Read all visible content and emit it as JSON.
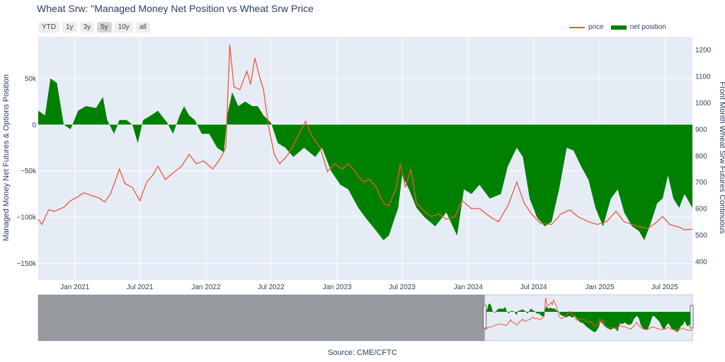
{
  "title": "Wheat Srw: \"Managed Money Net Position vs Wheat Srw Price",
  "range_buttons": [
    "YTD",
    "1y",
    "3y",
    "5y",
    "10y",
    "all"
  ],
  "active_range": "5y",
  "legend": {
    "price": "price",
    "net_position": "net position"
  },
  "source": "Source: CME/CFTC",
  "colors": {
    "price": "#ef553b",
    "net_position": "#008000",
    "plot_bg": "#e5ecf6",
    "axis_text": "#2a3f5f"
  },
  "chart_data": {
    "type": "line",
    "x_range": [
      "2020-09-21",
      "2025-09-16"
    ],
    "x_ticks": [
      "Jan 2021",
      "Jul 2021",
      "Jan 2022",
      "Jul 2022",
      "Jan 2023",
      "Jul 2023",
      "Jan 2024",
      "Jul 2024",
      "Jan 2025",
      "Jul 2025"
    ],
    "y_left": {
      "label": "Managed Money Net Futures & Options Position",
      "range": [
        -168000,
        95000
      ],
      "ticks": [
        "50k",
        "0",
        "−50k",
        "−100k",
        "−150k"
      ],
      "tick_values": [
        50000,
        0,
        -50000,
        -100000,
        -150000
      ]
    },
    "y_right": {
      "label": "Front Month Wheat Srw Futures Continuous",
      "range": [
        330,
        1250
      ],
      "ticks": [
        "1200",
        "1100",
        "1000",
        "900",
        "800",
        "700",
        "600",
        "500",
        "400"
      ],
      "tick_values": [
        1200,
        1100,
        1000,
        900,
        800,
        700,
        600,
        500,
        400
      ]
    },
    "series": [
      {
        "name": "net position",
        "type": "area",
        "axis": "left",
        "points": [
          [
            "2020-09-21",
            15000
          ],
          [
            "2020-10-10",
            10000
          ],
          [
            "2020-10-25",
            50000
          ],
          [
            "2020-11-12",
            45000
          ],
          [
            "2020-12-01",
            0
          ],
          [
            "2020-12-20",
            -5000
          ],
          [
            "2021-01-10",
            15000
          ],
          [
            "2021-02-01",
            20000
          ],
          [
            "2021-03-01",
            18000
          ],
          [
            "2021-03-20",
            30000
          ],
          [
            "2021-04-01",
            5000
          ],
          [
            "2021-04-20",
            -10000
          ],
          [
            "2021-05-05",
            5000
          ],
          [
            "2021-05-25",
            5000
          ],
          [
            "2021-06-10",
            0
          ],
          [
            "2021-06-25",
            -20000
          ],
          [
            "2021-07-10",
            5000
          ],
          [
            "2021-08-01",
            10000
          ],
          [
            "2021-08-20",
            15000
          ],
          [
            "2021-09-15",
            2000
          ],
          [
            "2021-10-01",
            -10000
          ],
          [
            "2021-10-20",
            10000
          ],
          [
            "2021-11-01",
            20000
          ],
          [
            "2021-11-15",
            10000
          ],
          [
            "2021-12-01",
            5000
          ],
          [
            "2021-12-20",
            -10000
          ],
          [
            "2022-01-10",
            -10000
          ],
          [
            "2022-02-01",
            -25000
          ],
          [
            "2022-02-20",
            -30000
          ],
          [
            "2022-03-01",
            10000
          ],
          [
            "2022-03-15",
            35000
          ],
          [
            "2022-04-01",
            20000
          ],
          [
            "2022-04-20",
            25000
          ],
          [
            "2022-05-10",
            20000
          ],
          [
            "2022-05-25",
            20000
          ],
          [
            "2022-06-10",
            10000
          ],
          [
            "2022-07-01",
            2000
          ],
          [
            "2022-07-20",
            -20000
          ],
          [
            "2022-08-10",
            -25000
          ],
          [
            "2022-09-01",
            -35000
          ],
          [
            "2022-10-01",
            -25000
          ],
          [
            "2022-11-01",
            -35000
          ],
          [
            "2022-11-20",
            -25000
          ],
          [
            "2022-12-15",
            -50000
          ],
          [
            "2023-01-10",
            -65000
          ],
          [
            "2023-02-01",
            -70000
          ],
          [
            "2023-03-01",
            -90000
          ],
          [
            "2023-03-20",
            -100000
          ],
          [
            "2023-04-20",
            -115000
          ],
          [
            "2023-05-10",
            -125000
          ],
          [
            "2023-05-25",
            -120000
          ],
          [
            "2023-06-20",
            -90000
          ],
          [
            "2023-07-01",
            -55000
          ],
          [
            "2023-07-20",
            -70000
          ],
          [
            "2023-08-10",
            -90000
          ],
          [
            "2023-09-01",
            -100000
          ],
          [
            "2023-10-01",
            -110000
          ],
          [
            "2023-11-01",
            -95000
          ],
          [
            "2023-12-01",
            -120000
          ],
          [
            "2023-12-20",
            -70000
          ],
          [
            "2024-01-10",
            -75000
          ],
          [
            "2024-02-01",
            -65000
          ],
          [
            "2024-03-01",
            -80000
          ],
          [
            "2024-04-01",
            -75000
          ],
          [
            "2024-04-20",
            -45000
          ],
          [
            "2024-05-15",
            -25000
          ],
          [
            "2024-06-01",
            -35000
          ],
          [
            "2024-06-20",
            -80000
          ],
          [
            "2024-07-10",
            -100000
          ],
          [
            "2024-08-01",
            -110000
          ],
          [
            "2024-08-20",
            -105000
          ],
          [
            "2024-09-10",
            -70000
          ],
          [
            "2024-10-01",
            -25000
          ],
          [
            "2024-10-20",
            -28000
          ],
          [
            "2024-11-10",
            -45000
          ],
          [
            "2024-12-01",
            -60000
          ],
          [
            "2024-12-20",
            -90000
          ],
          [
            "2025-01-10",
            -110000
          ],
          [
            "2025-02-01",
            -80000
          ],
          [
            "2025-02-20",
            -70000
          ],
          [
            "2025-03-10",
            -95000
          ],
          [
            "2025-04-01",
            -110000
          ],
          [
            "2025-04-20",
            -115000
          ],
          [
            "2025-05-05",
            -125000
          ],
          [
            "2025-05-20",
            -110000
          ],
          [
            "2025-06-10",
            -85000
          ],
          [
            "2025-06-25",
            -80000
          ],
          [
            "2025-07-10",
            -55000
          ],
          [
            "2025-07-25",
            -80000
          ],
          [
            "2025-08-10",
            -90000
          ],
          [
            "2025-08-25",
            -75000
          ],
          [
            "2025-09-16",
            -90000
          ]
        ]
      },
      {
        "name": "price",
        "type": "line",
        "axis": "right",
        "points": [
          [
            "2020-09-21",
            560
          ],
          [
            "2020-10-01",
            540
          ],
          [
            "2020-10-20",
            595
          ],
          [
            "2020-11-05",
            590
          ],
          [
            "2020-12-01",
            605
          ],
          [
            "2020-12-20",
            630
          ],
          [
            "2021-01-10",
            645
          ],
          [
            "2021-01-25",
            660
          ],
          [
            "2021-02-15",
            650
          ],
          [
            "2021-03-10",
            640
          ],
          [
            "2021-03-25",
            625
          ],
          [
            "2021-04-10",
            655
          ],
          [
            "2021-04-25",
            710
          ],
          [
            "2021-05-05",
            750
          ],
          [
            "2021-05-20",
            695
          ],
          [
            "2021-06-10",
            680
          ],
          [
            "2021-07-01",
            630
          ],
          [
            "2021-07-20",
            700
          ],
          [
            "2021-08-05",
            725
          ],
          [
            "2021-08-20",
            760
          ],
          [
            "2021-09-10",
            710
          ],
          [
            "2021-10-01",
            735
          ],
          [
            "2021-10-25",
            760
          ],
          [
            "2021-11-15",
            805
          ],
          [
            "2021-12-05",
            770
          ],
          [
            "2021-12-25",
            780
          ],
          [
            "2022-01-20",
            750
          ],
          [
            "2022-02-10",
            790
          ],
          [
            "2022-02-25",
            830
          ],
          [
            "2022-03-08",
            1220
          ],
          [
            "2022-03-20",
            1060
          ],
          [
            "2022-04-05",
            1050
          ],
          [
            "2022-04-25",
            1120
          ],
          [
            "2022-05-05",
            1070
          ],
          [
            "2022-05-17",
            1170
          ],
          [
            "2022-05-30",
            1100
          ],
          [
            "2022-06-10",
            1050
          ],
          [
            "2022-06-25",
            905
          ],
          [
            "2022-07-10",
            805
          ],
          [
            "2022-07-25",
            770
          ],
          [
            "2022-08-15",
            800
          ],
          [
            "2022-09-01",
            840
          ],
          [
            "2022-09-20",
            890
          ],
          [
            "2022-10-05",
            930
          ],
          [
            "2022-10-25",
            870
          ],
          [
            "2022-11-15",
            830
          ],
          [
            "2022-12-05",
            740
          ],
          [
            "2022-12-25",
            770
          ],
          [
            "2023-01-15",
            750
          ],
          [
            "2023-02-01",
            770
          ],
          [
            "2023-02-20",
            740
          ],
          [
            "2023-03-15",
            700
          ],
          [
            "2023-04-01",
            710
          ],
          [
            "2023-04-20",
            680
          ],
          [
            "2023-05-10",
            620
          ],
          [
            "2023-05-25",
            610
          ],
          [
            "2023-06-15",
            680
          ],
          [
            "2023-06-26",
            770
          ],
          [
            "2023-07-10",
            680
          ],
          [
            "2023-07-25",
            750
          ],
          [
            "2023-08-10",
            620
          ],
          [
            "2023-09-01",
            590
          ],
          [
            "2023-09-20",
            570
          ],
          [
            "2023-10-10",
            580
          ],
          [
            "2023-11-01",
            560
          ],
          [
            "2023-11-25",
            570
          ],
          [
            "2023-12-15",
            630
          ],
          [
            "2024-01-10",
            600
          ],
          [
            "2024-02-01",
            600
          ],
          [
            "2024-03-01",
            570
          ],
          [
            "2024-03-25",
            550
          ],
          [
            "2024-04-20",
            610
          ],
          [
            "2024-05-15",
            700
          ],
          [
            "2024-06-05",
            620
          ],
          [
            "2024-06-25",
            580
          ],
          [
            "2024-07-20",
            545
          ],
          [
            "2024-08-20",
            540
          ],
          [
            "2024-09-15",
            580
          ],
          [
            "2024-10-10",
            595
          ],
          [
            "2024-11-01",
            570
          ],
          [
            "2024-12-01",
            550
          ],
          [
            "2024-12-25",
            540
          ],
          [
            "2025-01-20",
            550
          ],
          [
            "2025-02-15",
            590
          ],
          [
            "2025-03-10",
            550
          ],
          [
            "2025-04-01",
            540
          ],
          [
            "2025-04-25",
            530
          ],
          [
            "2025-05-15",
            525
          ],
          [
            "2025-06-05",
            545
          ],
          [
            "2025-06-25",
            570
          ],
          [
            "2025-07-15",
            540
          ],
          [
            "2025-08-10",
            530
          ],
          [
            "2025-08-25",
            520
          ],
          [
            "2025-09-16",
            522
          ]
        ]
      }
    ],
    "rangeslider": {
      "x_range": [
        "2010-01-01",
        "2025-09-16"
      ],
      "visible_from": "2020-09-21"
    }
  }
}
